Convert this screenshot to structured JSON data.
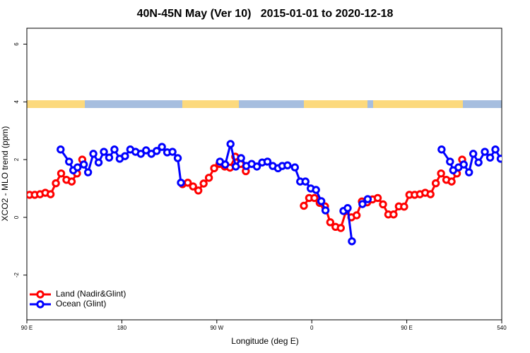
{
  "chart_data": {
    "type": "line",
    "title": "40N-45N May (Ver 10)   2015-01-01 to 2020-12-18",
    "x_label": "Longitude (deg E)",
    "y_label": "XCO2 - MLO trend (ppm)",
    "xlim": [
      90,
      540
    ],
    "ylim": [
      -3.55,
      6.55
    ],
    "xticks": [
      {
        "value": 90,
        "label": "90 E"
      },
      180,
      {
        "value": 270,
        "label": "90 W"
      },
      {
        "value": 360,
        "label": "0"
      },
      {
        "value": 450,
        "label": "90 E"
      },
      540
    ],
    "yticks": [
      -2,
      0,
      2,
      4,
      6
    ],
    "legend": "bottom-left",
    "series": [
      {
        "name": "Land (Nadir&Glint)",
        "color": "#ff0000",
        "x": [
          92.5,
          97.5,
          102.5,
          107.5,
          112.5,
          117.5,
          122.5,
          127.5,
          132.5,
          137.5,
          142.5,
          147.5,
          237.5,
          242.5,
          247.5,
          252.5,
          257.5,
          262.5,
          267.5,
          272.5,
          277.5,
          282.5,
          287.5,
          292.5,
          297.5,
          302.5,
          352.5,
          357.5,
          362.5,
          367.5,
          372.5,
          377.5,
          382.5,
          387.5,
          392.5,
          397.5,
          402.5,
          407.5,
          412.5,
          417.5,
          422.5,
          427.5,
          432.5,
          437.5,
          442.5,
          447.5,
          452.5,
          457.5,
          462.5,
          467.5,
          472.5,
          477.5,
          482.5,
          487.5,
          492.5,
          497.5,
          502.5
        ],
        "values": [
          0.78,
          0.78,
          0.8,
          0.85,
          0.8,
          1.18,
          1.52,
          1.3,
          1.24,
          1.52,
          2.0,
          null,
          1.15,
          1.2,
          1.07,
          0.93,
          1.17,
          1.37,
          1.7,
          1.85,
          1.76,
          1.72,
          2.1,
          1.85,
          1.6,
          null,
          0.4,
          0.67,
          0.67,
          0.5,
          0.38,
          -0.17,
          -0.33,
          -0.37,
          0.22,
          0.0,
          0.07,
          0.55,
          0.52,
          0.62,
          0.67,
          0.45,
          0.1,
          0.1,
          0.38,
          0.37,
          0.78,
          0.78,
          0.8,
          0.85,
          0.8,
          1.18,
          1.52,
          1.3,
          1.24,
          1.52,
          2.0
        ]
      },
      {
        "name": "Ocean (Glint)",
        "color": "#0000ff",
        "x": [
          122,
          130,
          134,
          138,
          144,
          148,
          153,
          158,
          163,
          168,
          173,
          178,
          183,
          188,
          193,
          198,
          203,
          208,
          213,
          218,
          223,
          228,
          233,
          236,
          255,
          273,
          278,
          283,
          288,
          293,
          298,
          303,
          308,
          313,
          318,
          323,
          328,
          332,
          337,
          344,
          349,
          354,
          359,
          364,
          369,
          373,
          380,
          390,
          394,
          398,
          403,
          408,
          413,
          460,
          483,
          491,
          494,
          499,
          504,
          509,
          513,
          518,
          524,
          529,
          534,
          539
        ],
        "values": [
          2.35,
          1.93,
          1.63,
          1.73,
          1.83,
          1.56,
          2.2,
          1.9,
          2.27,
          2.07,
          2.35,
          2.03,
          2.12,
          2.35,
          2.27,
          2.2,
          2.32,
          2.2,
          2.3,
          2.44,
          2.25,
          2.27,
          2.05,
          1.2,
          null,
          1.93,
          1.83,
          2.54,
          1.76,
          2.05,
          1.78,
          1.85,
          1.76,
          1.9,
          1.93,
          1.78,
          1.7,
          1.78,
          1.8,
          1.73,
          1.24,
          1.24,
          1.0,
          0.95,
          0.56,
          0.24,
          null,
          0.22,
          0.32,
          -0.83,
          null,
          0.46,
          0.63,
          null,
          2.35,
          1.93,
          1.63,
          1.73,
          1.83,
          1.56,
          2.2,
          1.9,
          2.27,
          2.07,
          2.35,
          2.03
        ]
      }
    ]
  }
}
